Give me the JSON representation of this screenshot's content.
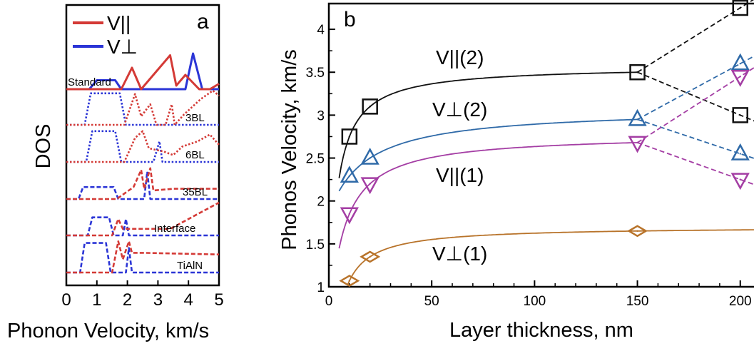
{
  "colors": {
    "v_parallel": "#d43a36",
    "v_perp": "#2b35d6",
    "vpar2": "#111111",
    "vperp2": "#2f6aa8",
    "vpar1": "#a43ea4",
    "vperp1": "#b8732a"
  },
  "chart_data": [
    {
      "panel": "a",
      "type": "line",
      "xlabel": "Phonon Velocity, km/s",
      "ylabel": "DOS",
      "xlim": [
        0,
        5
      ],
      "xticks": [
        "0",
        "1",
        "2",
        "3",
        "4",
        "5"
      ],
      "legend": {
        "placement": "top-left",
        "entries": [
          {
            "label": "V||",
            "color_key": "v_parallel"
          },
          {
            "label": "V⊥",
            "color_key": "v_perp"
          }
        ]
      },
      "rows": [
        {
          "label": "Standard",
          "style": "solid",
          "perp": [
            [
              0,
              0
            ],
            [
              0.75,
              0
            ],
            [
              1.0,
              0.25
            ],
            [
              1.6,
              0.25
            ],
            [
              1.8,
              0
            ],
            [
              3.9,
              0
            ],
            [
              4.15,
              1.0
            ],
            [
              4.45,
              0
            ],
            [
              5,
              0
            ]
          ],
          "par": [
            [
              0,
              0
            ],
            [
              1.8,
              0
            ],
            [
              2.15,
              0.6
            ],
            [
              2.45,
              0
            ],
            [
              3.4,
              0.95
            ],
            [
              3.6,
              0.1
            ],
            [
              3.9,
              0.4
            ],
            [
              4.35,
              0
            ],
            [
              4.7,
              0
            ],
            [
              5,
              0.15
            ]
          ]
        },
        {
          "label": "3BL",
          "style": "dotted",
          "perp": [
            [
              0,
              0
            ],
            [
              0.6,
              0
            ],
            [
              0.8,
              0.92
            ],
            [
              1.75,
              0.92
            ],
            [
              1.95,
              0
            ],
            [
              5,
              0
            ]
          ],
          "par": [
            [
              0,
              0
            ],
            [
              1.9,
              0
            ],
            [
              2.25,
              0.9
            ],
            [
              2.45,
              0.25
            ],
            [
              2.75,
              0.6
            ],
            [
              2.95,
              0
            ],
            [
              3.25,
              0
            ],
            [
              3.45,
              0.6
            ],
            [
              3.55,
              0
            ],
            [
              3.85,
              0.3
            ],
            [
              4.4,
              0.75
            ],
            [
              4.8,
              1.0
            ],
            [
              5,
              0.85
            ]
          ]
        },
        {
          "label": "6BL",
          "style": "dotted",
          "perp": [
            [
              0,
              0
            ],
            [
              0.65,
              0
            ],
            [
              0.85,
              0.9
            ],
            [
              1.6,
              0.9
            ],
            [
              1.8,
              0
            ],
            [
              2.85,
              0
            ],
            [
              3.05,
              0.6
            ],
            [
              3.15,
              0
            ],
            [
              5,
              0
            ]
          ],
          "par": [
            [
              0,
              0
            ],
            [
              1.9,
              0
            ],
            [
              2.25,
              0.7
            ],
            [
              2.5,
              0.9
            ],
            [
              2.7,
              0.4
            ],
            [
              3.2,
              0.3
            ],
            [
              3.5,
              0.2
            ],
            [
              3.8,
              0.45
            ],
            [
              4.3,
              0.6
            ],
            [
              4.7,
              0.8
            ],
            [
              5,
              0.5
            ]
          ]
        },
        {
          "label": "35BL",
          "style": "dashed",
          "perp": [
            [
              0,
              0
            ],
            [
              0.4,
              0
            ],
            [
              0.55,
              0.35
            ],
            [
              1.55,
              0.35
            ],
            [
              1.7,
              0
            ],
            [
              2.55,
              0
            ],
            [
              2.65,
              0.8
            ],
            [
              2.75,
              0
            ],
            [
              5,
              0
            ]
          ],
          "par": [
            [
              0,
              0
            ],
            [
              1.65,
              0
            ],
            [
              2.2,
              0.35
            ],
            [
              2.45,
              0.85
            ],
            [
              2.55,
              0.3
            ],
            [
              2.75,
              0.9
            ],
            [
              2.85,
              0.25
            ],
            [
              3.5,
              0.3
            ],
            [
              5,
              0.3
            ]
          ]
        },
        {
          "label": "Interface",
          "style": "dashed",
          "perp": [
            [
              0,
              0
            ],
            [
              0.7,
              0
            ],
            [
              0.85,
              0.55
            ],
            [
              1.4,
              0.55
            ],
            [
              1.55,
              0
            ],
            [
              1.85,
              0
            ],
            [
              1.95,
              0.5
            ],
            [
              2.05,
              0
            ],
            [
              5,
              0
            ]
          ],
          "par": [
            [
              0,
              0
            ],
            [
              1.5,
              0
            ],
            [
              1.7,
              0.5
            ],
            [
              1.85,
              0.2
            ],
            [
              2.15,
              0.2
            ],
            [
              2.7,
              0.2
            ],
            [
              3.4,
              0.2
            ],
            [
              5,
              1.0
            ]
          ]
        },
        {
          "label": "TiAlN",
          "style": "dashed",
          "perp": [
            [
              0,
              0
            ],
            [
              0.45,
              0
            ],
            [
              0.6,
              0.9
            ],
            [
              1.3,
              0.9
            ],
            [
              1.45,
              0
            ],
            [
              1.95,
              0
            ],
            [
              2.05,
              0.75
            ],
            [
              2.15,
              0
            ],
            [
              5,
              0
            ]
          ],
          "par": [
            [
              0,
              0
            ],
            [
              1.5,
              0
            ],
            [
              1.7,
              0.95
            ],
            [
              1.85,
              0.4
            ],
            [
              2.05,
              0.95
            ],
            [
              2.15,
              0.6
            ],
            [
              2.5,
              0.6
            ],
            [
              5,
              0.55
            ]
          ]
        }
      ]
    },
    {
      "panel": "b",
      "type": "line",
      "xlabel": "Layer thickness, nm",
      "ylabel": "Phonos Velocity, km/s",
      "xlim": [
        0,
        215
      ],
      "ylim": [
        1,
        4.3
      ],
      "xticks": [
        0,
        50,
        100,
        150,
        200
      ],
      "yticks": [
        1,
        1.5,
        2,
        2.5,
        3,
        3.5,
        4
      ],
      "grid": false,
      "series": [
        {
          "name": "V||(2)",
          "color_key": "vpar2",
          "marker": "square",
          "points": [
            [
              10,
              2.75
            ],
            [
              20,
              3.1
            ],
            [
              150,
              3.5
            ]
          ],
          "branch_upper": [
            [
              200,
              4.25
            ]
          ],
          "branch_lower": [
            [
              200,
              3.0
            ]
          ]
        },
        {
          "name": "V⊥(2)",
          "color_key": "vperp2",
          "marker": "triangle-up",
          "points": [
            [
              10,
              2.29
            ],
            [
              20,
              2.5
            ],
            [
              150,
              2.95
            ]
          ],
          "branch_upper": [
            [
              200,
              3.6
            ]
          ],
          "branch_lower": [
            [
              200,
              2.55
            ]
          ]
        },
        {
          "name": "V||(1)",
          "color_key": "vpar1",
          "marker": "triangle-down",
          "points": [
            [
              10,
              1.85
            ],
            [
              20,
              2.2
            ],
            [
              150,
              2.68
            ]
          ],
          "branch_upper": [
            [
              200,
              3.45
            ]
          ],
          "branch_lower": [
            [
              200,
              2.25
            ]
          ]
        },
        {
          "name": "V⊥(1)",
          "color_key": "vperp1",
          "marker": "diamond",
          "points": [
            [
              10,
              1.07
            ],
            [
              20,
              1.35
            ],
            [
              150,
              1.65
            ]
          ],
          "branch_upper": [],
          "branch_lower": []
        }
      ]
    }
  ]
}
